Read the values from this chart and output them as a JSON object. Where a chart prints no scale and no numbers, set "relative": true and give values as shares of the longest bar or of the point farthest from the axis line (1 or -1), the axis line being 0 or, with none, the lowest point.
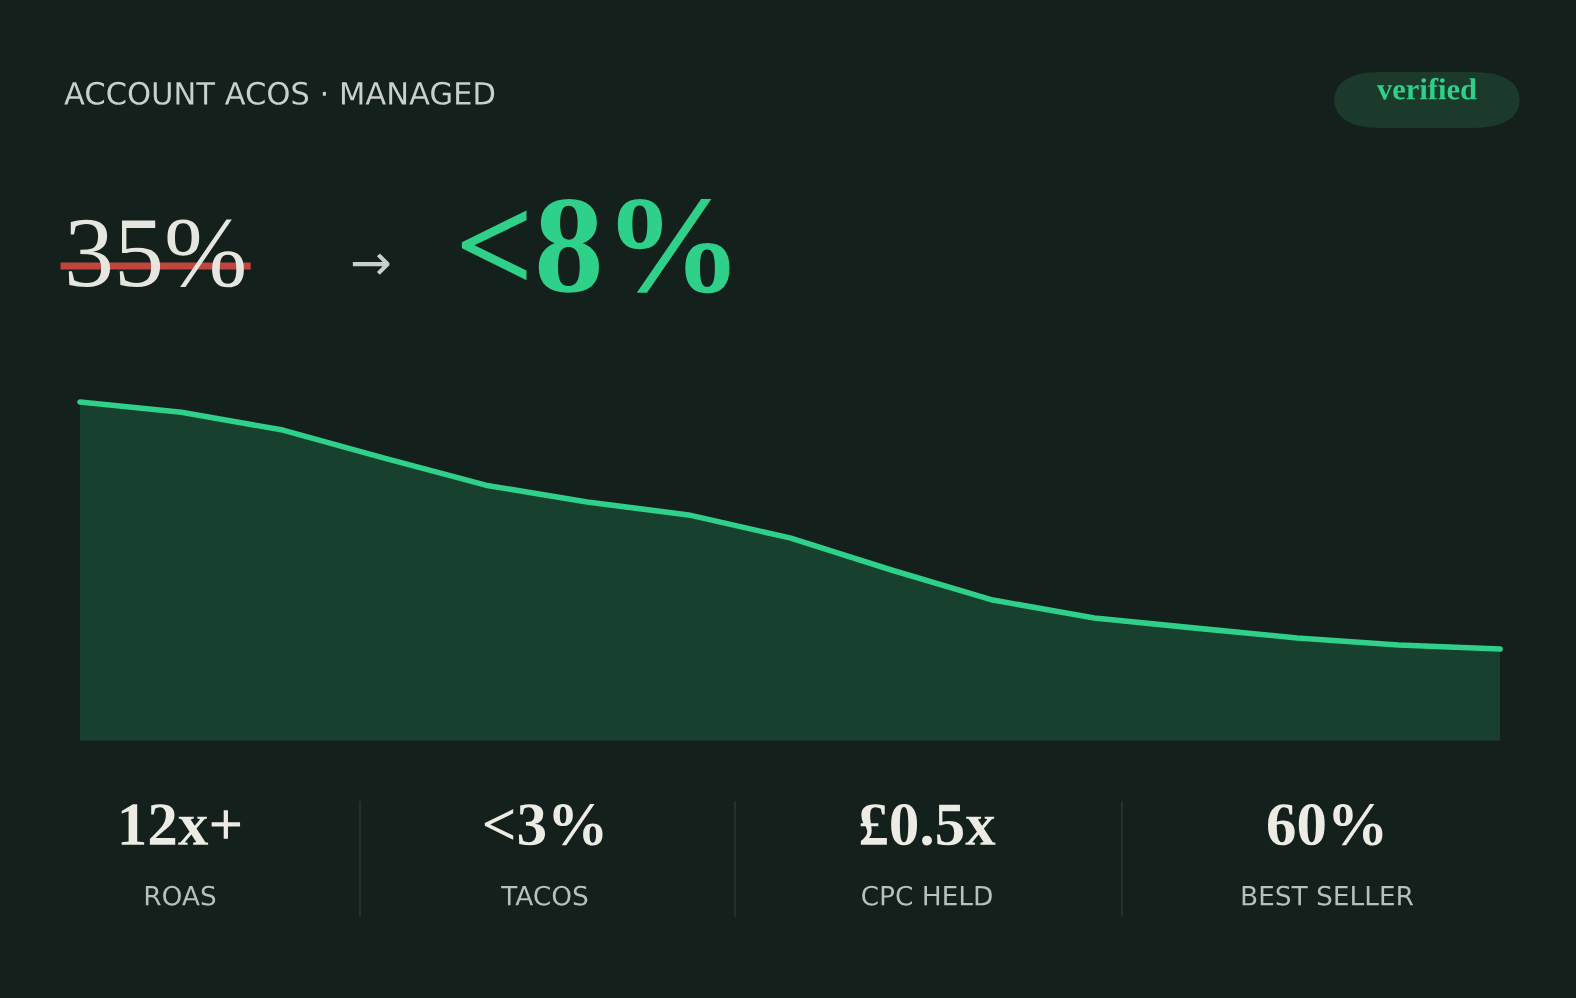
{
  "chart_data": {
    "type": "area",
    "title": "ACCOUNT ACOS · MANAGED",
    "relative": true,
    "categories": [
      null,
      null,
      null,
      null,
      null,
      null,
      null,
      null,
      null,
      null,
      null,
      null,
      null,
      null,
      null
    ],
    "series": [
      {
        "color": "#2fd08a",
        "values": [
          1.0,
          0.97,
          0.917,
          0.834,
          0.754,
          0.704,
          0.666,
          0.598,
          0.503,
          0.414,
          0.361,
          0.331,
          0.302,
          0.281,
          0.269
        ]
      }
    ],
    "annotations": [
      "verified",
      "35%",
      "→",
      "<8%",
      "12x+",
      "ROAS",
      "<3%",
      "TACOS",
      "£0.5x",
      "CPC HELD",
      "60%",
      "BEST SELLER"
    ]
  }
}
